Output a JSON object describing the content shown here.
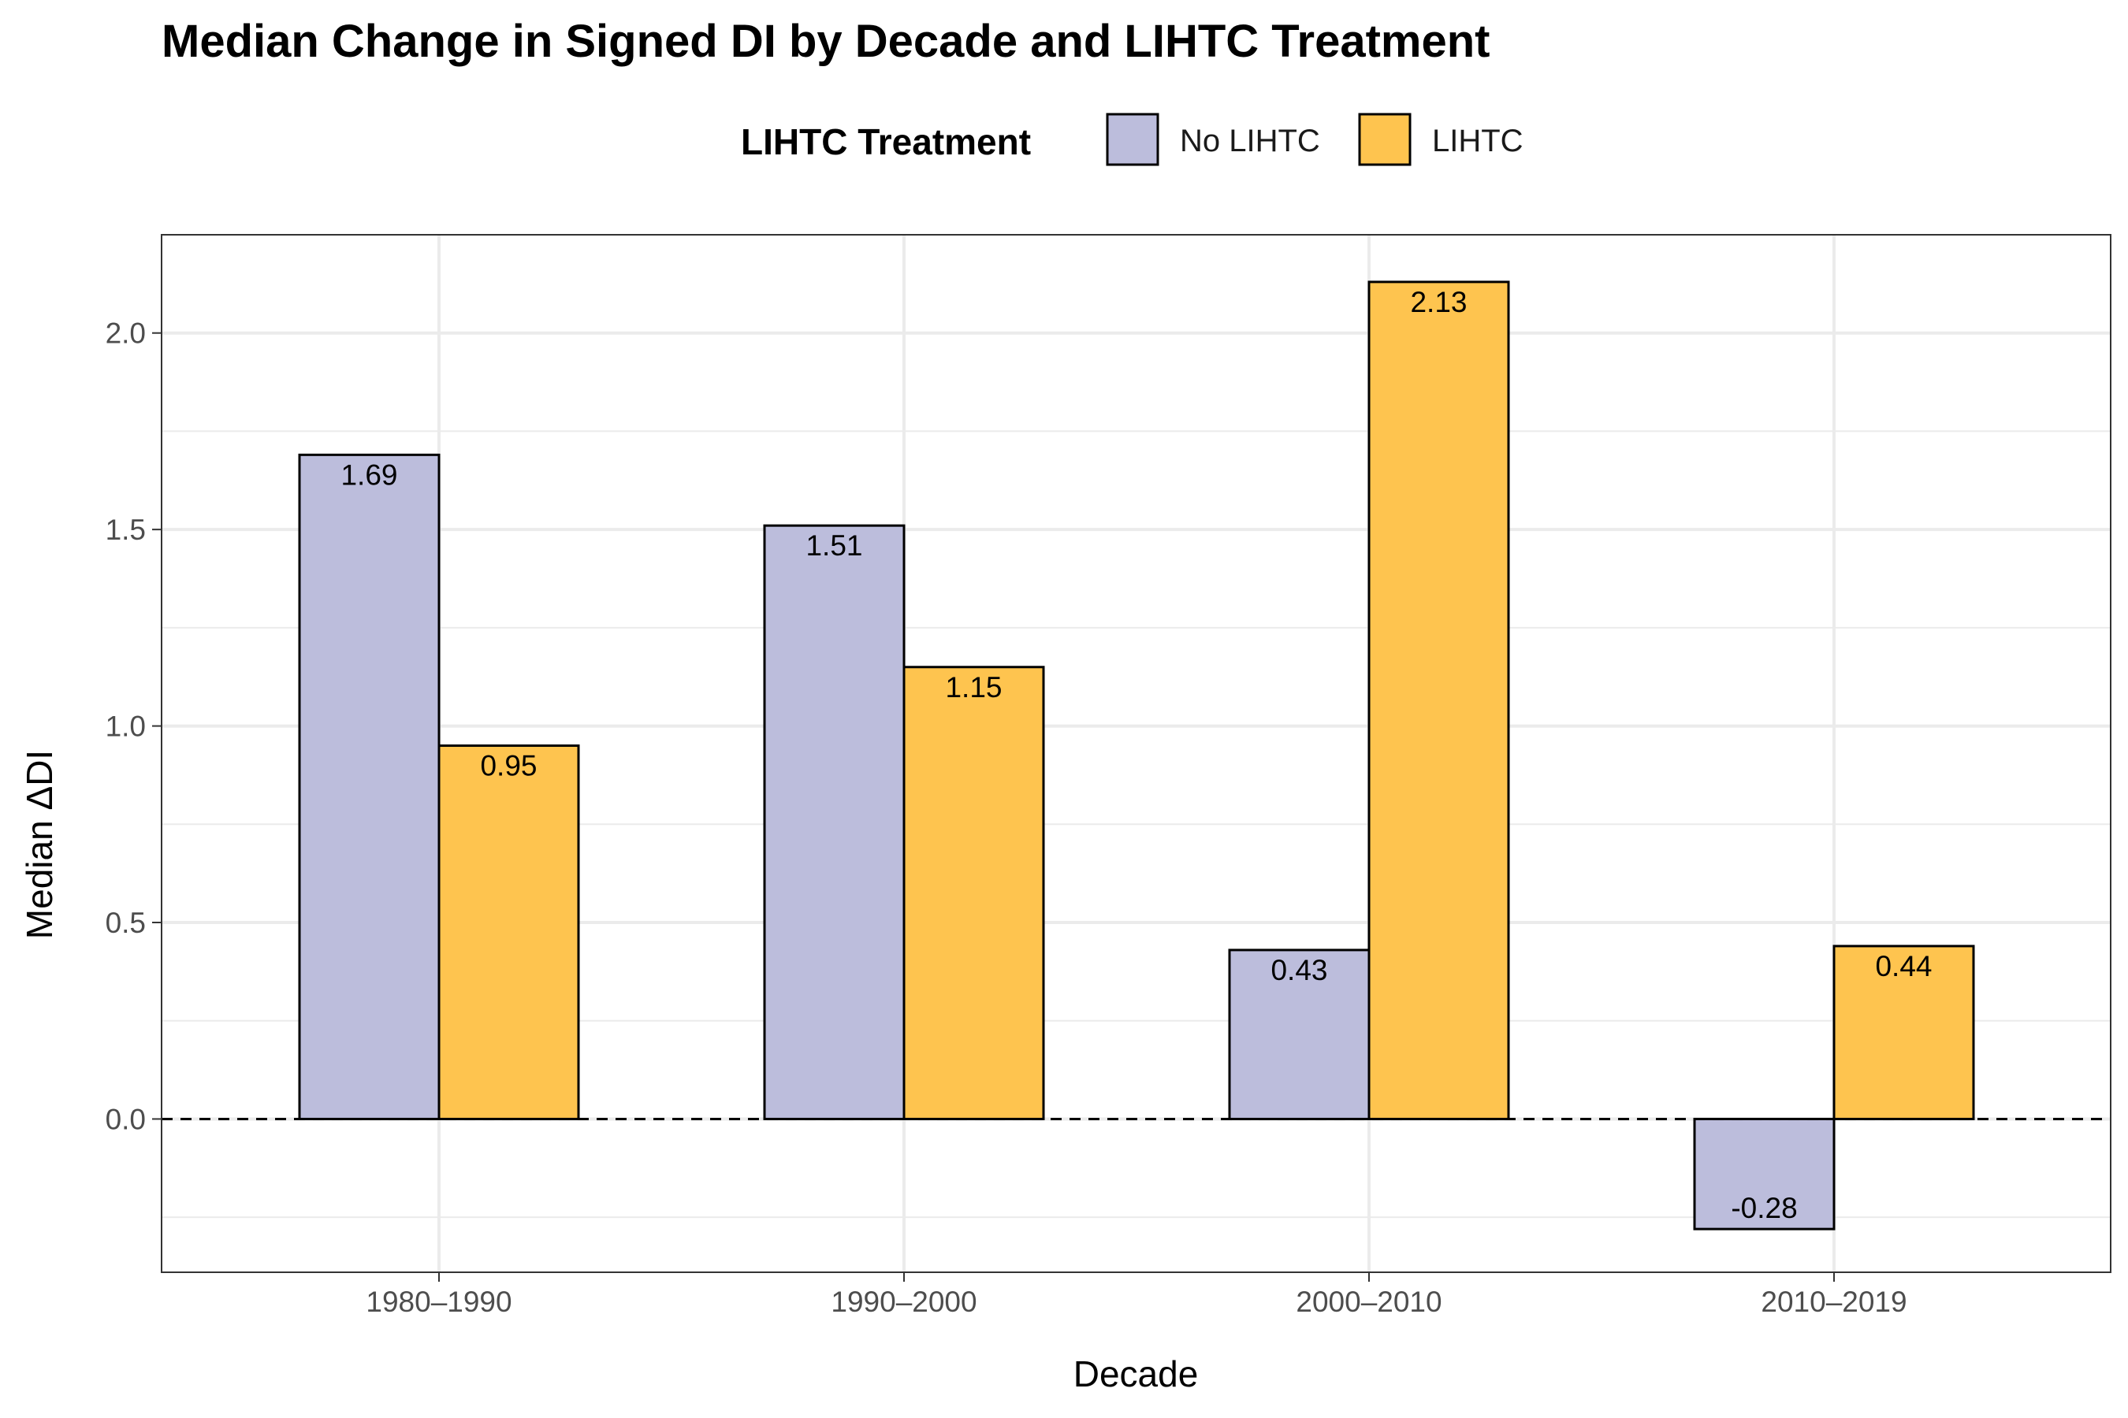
{
  "chart_data": {
    "type": "bar",
    "title": "Median Change in Signed DI by Decade and LIHTC Treatment",
    "xlabel": "Decade",
    "ylabel": "Median ΔDI",
    "categories": [
      "1980–1990",
      "1990–2000",
      "2000–2010",
      "2010–2019"
    ],
    "series": [
      {
        "name": "No LIHTC",
        "color": "#bcbddc",
        "values": [
          1.69,
          1.51,
          0.43,
          -0.28
        ],
        "labels": [
          "1.69",
          "1.51",
          "0.43",
          "-0.28"
        ]
      },
      {
        "name": "LIHTC",
        "color": "#fec44f",
        "values": [
          0.95,
          1.15,
          2.13,
          0.44
        ],
        "labels": [
          "0.95",
          "1.15",
          "2.13",
          "0.44"
        ]
      }
    ],
    "ylim": [
      -0.39,
      2.25
    ],
    "yticks": [
      0.0,
      0.5,
      1.0,
      1.5,
      2.0
    ],
    "ytick_labels": [
      "0.0",
      "0.5",
      "1.0",
      "1.5",
      "2.0"
    ],
    "reference_line": {
      "y": 0,
      "style": "dashed"
    },
    "legend": {
      "title": "LIHTC Treatment",
      "position": "top"
    },
    "grid": true
  }
}
